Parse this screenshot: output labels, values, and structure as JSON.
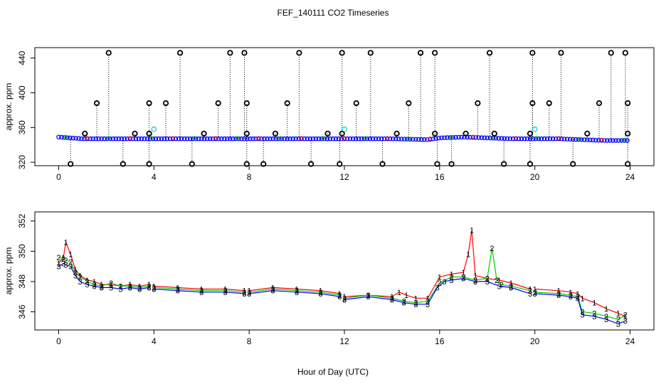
{
  "figure": {
    "title": "FEF_140111  CO2 Timeseries",
    "xlabel": "Hour of Day (UTC)"
  },
  "colors": {
    "series1": "#ff0000",
    "series2": "#00cc00",
    "series3": "#0000ff",
    "raw": "#000000",
    "flag": "#00cccc",
    "frame": "#000000"
  },
  "chart_data": [
    {
      "type": "scatter",
      "title": "",
      "xlabel": "",
      "ylabel": "approx. ppm",
      "xlim": [
        -1,
        25
      ],
      "ylim": [
        316,
        452
      ],
      "xticks": [
        0,
        4,
        8,
        12,
        16,
        20,
        24
      ],
      "yticks": [
        320,
        360,
        400,
        440
      ],
      "baseline": {
        "x": [
          0,
          0.5,
          1,
          2,
          3,
          4,
          6,
          8,
          10,
          12,
          14,
          15.5,
          16,
          17,
          18,
          19,
          20,
          21,
          22,
          23,
          23.8
        ],
        "y": [
          349,
          348,
          347,
          347,
          347,
          347,
          347,
          347,
          347,
          347,
          347,
          346,
          348,
          349,
          348,
          347,
          347,
          347,
          346,
          345,
          345
        ]
      },
      "spikes": [
        {
          "x": 2.1,
          "y": 446
        },
        {
          "x": 5.1,
          "y": 446
        },
        {
          "x": 7.2,
          "y": 446
        },
        {
          "x": 7.8,
          "y": 446
        },
        {
          "x": 10.1,
          "y": 446
        },
        {
          "x": 11.9,
          "y": 446
        },
        {
          "x": 13.1,
          "y": 446
        },
        {
          "x": 15.2,
          "y": 446
        },
        {
          "x": 15.8,
          "y": 446
        },
        {
          "x": 18.1,
          "y": 446
        },
        {
          "x": 19.9,
          "y": 446
        },
        {
          "x": 21.1,
          "y": 446
        },
        {
          "x": 23.2,
          "y": 446
        },
        {
          "x": 23.8,
          "y": 446
        },
        {
          "x": 1.6,
          "y": 388
        },
        {
          "x": 3.8,
          "y": 388
        },
        {
          "x": 4.5,
          "y": 388
        },
        {
          "x": 6.7,
          "y": 388
        },
        {
          "x": 7.9,
          "y": 388
        },
        {
          "x": 9.6,
          "y": 388
        },
        {
          "x": 12.5,
          "y": 388
        },
        {
          "x": 14.7,
          "y": 388
        },
        {
          "x": 17.6,
          "y": 388
        },
        {
          "x": 19.9,
          "y": 388
        },
        {
          "x": 20.6,
          "y": 388
        },
        {
          "x": 22.7,
          "y": 388
        },
        {
          "x": 23.9,
          "y": 388
        },
        {
          "x": 0.5,
          "y": 318
        },
        {
          "x": 2.7,
          "y": 318
        },
        {
          "x": 3.8,
          "y": 318
        },
        {
          "x": 5.6,
          "y": 318
        },
        {
          "x": 7.9,
          "y": 318
        },
        {
          "x": 8.6,
          "y": 318
        },
        {
          "x": 10.6,
          "y": 318
        },
        {
          "x": 11.8,
          "y": 318
        },
        {
          "x": 13.6,
          "y": 318
        },
        {
          "x": 15.9,
          "y": 318
        },
        {
          "x": 16.5,
          "y": 318
        },
        {
          "x": 18.7,
          "y": 318
        },
        {
          "x": 19.8,
          "y": 318
        },
        {
          "x": 21.6,
          "y": 318
        },
        {
          "x": 23.9,
          "y": 318
        },
        {
          "x": 1.1,
          "y": 353
        },
        {
          "x": 3.2,
          "y": 353
        },
        {
          "x": 3.8,
          "y": 353
        },
        {
          "x": 6.1,
          "y": 353
        },
        {
          "x": 7.9,
          "y": 353
        },
        {
          "x": 9.1,
          "y": 353
        },
        {
          "x": 11.3,
          "y": 353
        },
        {
          "x": 11.9,
          "y": 353
        },
        {
          "x": 14.2,
          "y": 353
        },
        {
          "x": 15.8,
          "y": 353
        },
        {
          "x": 17.1,
          "y": 353
        },
        {
          "x": 18.3,
          "y": 353
        },
        {
          "x": 19.8,
          "y": 353
        },
        {
          "x": 22.2,
          "y": 353
        },
        {
          "x": 23.9,
          "y": 353
        }
      ],
      "flags": [
        {
          "x": 4.0,
          "y": 358
        },
        {
          "x": 12.0,
          "y": 358
        },
        {
          "x": 20.0,
          "y": 358
        }
      ]
    },
    {
      "type": "line",
      "title": "",
      "xlabel": "Hour of Day (UTC)",
      "ylabel": "approx. ppm",
      "xlim": [
        -1,
        25
      ],
      "ylim": [
        344.8,
        352.6
      ],
      "xticks": [
        0,
        4,
        8,
        12,
        16,
        20,
        24
      ],
      "yticks": [
        346,
        348,
        350,
        352
      ],
      "gaps": [
        3.85,
        7.85,
        11.9,
        19.85
      ],
      "series": [
        {
          "name": "1",
          "x": [
            0,
            0.2,
            0.3,
            0.5,
            0.7,
            0.9,
            1.2,
            1.5,
            1.8,
            2.2,
            2.6,
            3.0,
            3.4,
            3.8,
            4.0,
            5.0,
            6.0,
            7.0,
            7.8,
            8.0,
            9.0,
            10.0,
            11.0,
            11.8,
            12.0,
            13.0,
            14.0,
            14.3,
            14.6,
            15.0,
            15.5,
            16.0,
            16.5,
            17.0,
            17.2,
            17.35,
            17.5,
            18.0,
            18.5,
            19.0,
            19.8,
            20.0,
            21.0,
            21.5,
            21.8,
            22.0,
            22.5,
            23.0,
            23.5,
            23.8
          ],
          "y": [
            349.2,
            349.6,
            350.6,
            349.8,
            348.8,
            348.4,
            348.1,
            348.0,
            347.8,
            347.8,
            347.7,
            347.8,
            347.7,
            347.8,
            347.7,
            347.6,
            347.5,
            347.5,
            347.4,
            347.4,
            347.6,
            347.5,
            347.4,
            347.2,
            347.0,
            347.1,
            347.0,
            347.3,
            347.1,
            346.9,
            346.9,
            348.3,
            348.5,
            348.6,
            349.8,
            351.4,
            348.4,
            348.2,
            348.1,
            347.9,
            347.5,
            347.5,
            347.4,
            347.3,
            347.2,
            346.9,
            346.6,
            346.2,
            345.9,
            345.7
          ]
        },
        {
          "name": "2",
          "x": [
            0,
            0.2,
            0.3,
            0.5,
            0.7,
            0.9,
            1.2,
            1.5,
            1.8,
            2.2,
            2.6,
            3.0,
            3.4,
            3.8,
            4.0,
            5.0,
            6.0,
            7.0,
            7.8,
            8.0,
            9.0,
            10.0,
            11.0,
            11.8,
            12.0,
            13.0,
            14.0,
            14.5,
            15.0,
            15.5,
            16.0,
            16.5,
            17.0,
            17.5,
            18.0,
            18.2,
            18.4,
            18.6,
            19.0,
            19.8,
            20.0,
            21.0,
            21.5,
            21.8,
            22.0,
            22.5,
            23.0,
            23.5,
            23.8
          ],
          "y": [
            349.6,
            349.5,
            349.4,
            349.3,
            348.6,
            348.3,
            348.0,
            347.8,
            347.7,
            347.9,
            347.7,
            347.7,
            347.6,
            347.7,
            347.6,
            347.5,
            347.4,
            347.4,
            347.3,
            347.3,
            347.5,
            347.4,
            347.3,
            347.1,
            346.9,
            347.1,
            346.9,
            346.7,
            346.6,
            346.7,
            347.9,
            348.3,
            348.3,
            348.1,
            348.2,
            350.2,
            348.1,
            347.8,
            347.7,
            347.4,
            347.3,
            347.2,
            347.1,
            347.0,
            346.0,
            345.9,
            345.7,
            345.5,
            345.8
          ]
        },
        {
          "name": "3",
          "x": [
            0,
            0.2,
            0.3,
            0.5,
            0.7,
            0.9,
            1.2,
            1.5,
            1.8,
            2.2,
            2.6,
            3.0,
            3.4,
            3.8,
            4.0,
            5.0,
            6.0,
            7.0,
            7.8,
            8.0,
            9.0,
            10.0,
            11.0,
            11.8,
            12.0,
            13.0,
            14.0,
            14.5,
            15.0,
            15.5,
            15.9,
            16.2,
            16.5,
            17.0,
            17.5,
            18.0,
            18.5,
            19.0,
            19.8,
            20.0,
            21.0,
            21.5,
            21.8,
            22.0,
            22.5,
            23.0,
            23.5,
            23.8
          ],
          "y": [
            349.0,
            349.2,
            349.1,
            349.0,
            348.4,
            348.0,
            347.8,
            347.7,
            347.6,
            347.6,
            347.5,
            347.6,
            347.5,
            347.6,
            347.5,
            347.4,
            347.3,
            347.3,
            347.2,
            347.2,
            347.4,
            347.3,
            347.2,
            347.0,
            346.8,
            347.0,
            346.8,
            346.6,
            346.5,
            346.5,
            347.6,
            348.0,
            348.1,
            348.2,
            348.0,
            348.0,
            347.7,
            347.6,
            347.2,
            347.2,
            347.1,
            347.0,
            346.9,
            345.8,
            345.7,
            345.5,
            345.2,
            345.4
          ]
        }
      ]
    }
  ]
}
